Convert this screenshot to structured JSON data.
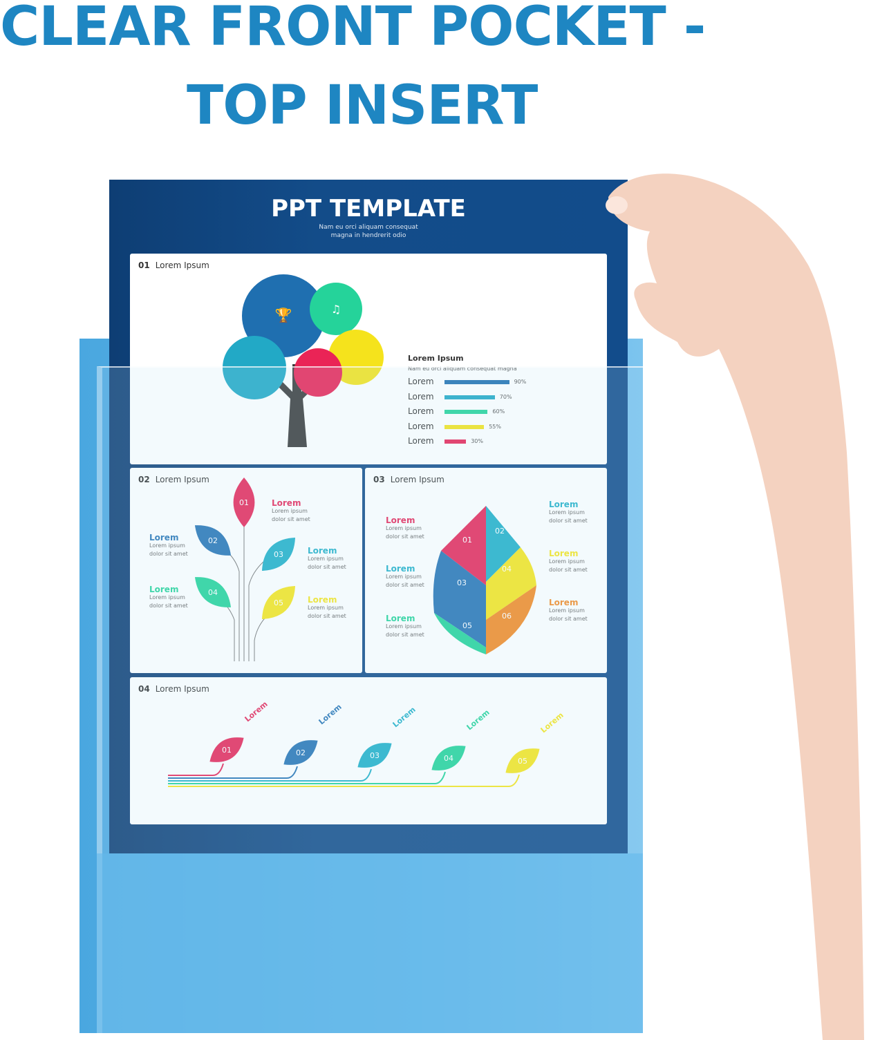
{
  "headline": {
    "line1": "CLEAR FRONT POCKET -",
    "line2": "TOP INSERT",
    "color": "#1e86c2"
  },
  "sheet": {
    "title": "PPT TEMPLATE",
    "subtitle_1": "Nam eu orci aliquam consequat",
    "subtitle_2": "magna in hendrerit odio",
    "panels": [
      {
        "num": "01",
        "title": "Lorem Ipsum"
      },
      {
        "num": "02",
        "title": "Lorem Ipsum"
      },
      {
        "num": "03",
        "title": "Lorem Ipsum"
      },
      {
        "num": "04",
        "title": "Lorem Ipsum"
      }
    ]
  },
  "bars": {
    "title": "Lorem Ipsum",
    "subtitle": "Nam eu orci aliquam consequat magna",
    "items": [
      {
        "label": "Lorem",
        "value": 90,
        "text": "90%",
        "color": "#1f6fb0"
      },
      {
        "label": "Lorem",
        "value": 70,
        "text": "70%",
        "color": "#22a9c6"
      },
      {
        "label": "Lorem",
        "value": 60,
        "text": "60%",
        "color": "#25d39a"
      },
      {
        "label": "Lorem",
        "value": 55,
        "text": "55%",
        "color": "#f5e31c"
      },
      {
        "label": "Lorem",
        "value": 30,
        "text": "30%",
        "color": "#ea2456"
      }
    ]
  },
  "leaves": {
    "heading": "Lorem",
    "body_1": "Lorem ipsum",
    "body_2": "dolor sit amet",
    "numbers": [
      "01",
      "02",
      "03",
      "04",
      "05",
      "06"
    ],
    "colors": [
      "#e8285a",
      "#2874b5",
      "#22b0c8",
      "#25d39a",
      "#f7e61e",
      "#f58a24"
    ]
  },
  "timeline": {
    "label": "Lorem"
  }
}
